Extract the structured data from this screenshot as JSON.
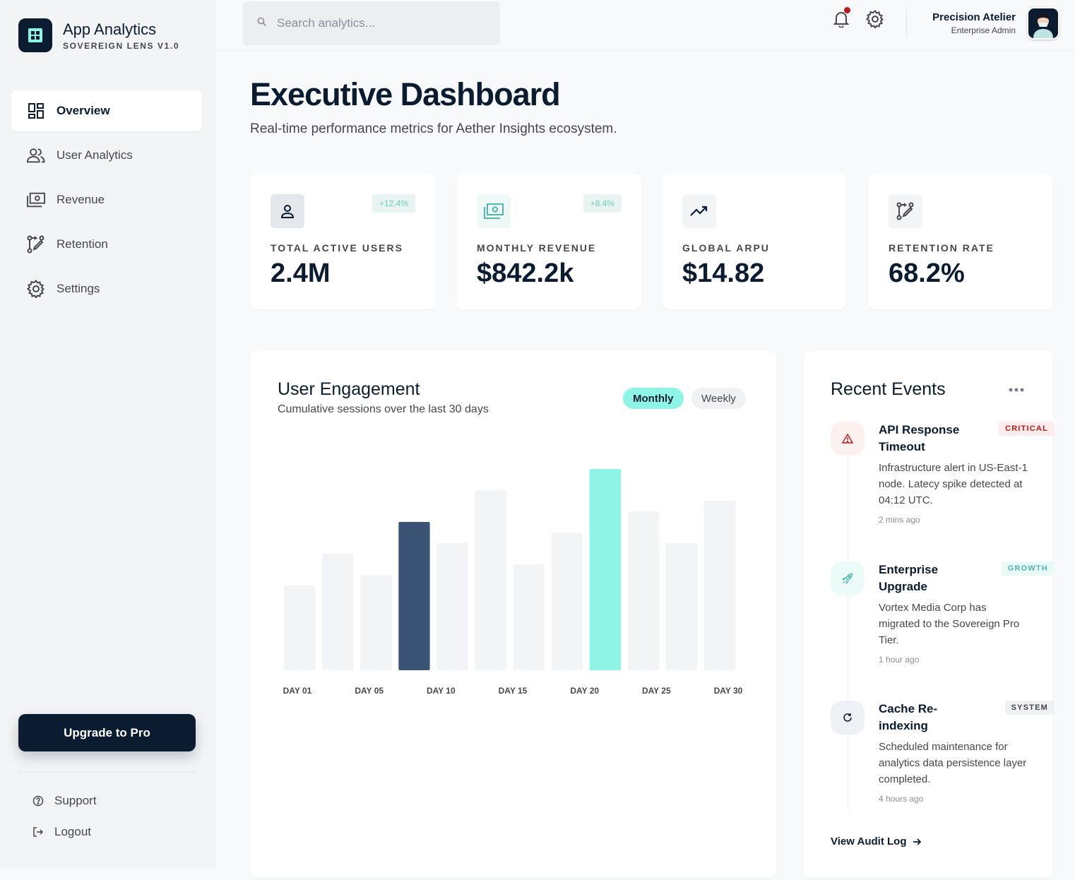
{
  "brand": {
    "title": "App Analytics",
    "subtitle": "SOVEREIGN LENS V1.0",
    "icon": "grid-logo-icon"
  },
  "sidebar": {
    "items": [
      {
        "label": "Overview",
        "icon": "dashboard-icon",
        "active": true
      },
      {
        "label": "User Analytics",
        "icon": "users-icon",
        "active": false
      },
      {
        "label": "Revenue",
        "icon": "money-icon",
        "active": false
      },
      {
        "label": "Retention",
        "icon": "route-icon",
        "active": false
      },
      {
        "label": "Settings",
        "icon": "gear-icon",
        "active": false
      }
    ],
    "upgrade_label": "Upgrade to Pro",
    "support_label": "Support",
    "logout_label": "Logout"
  },
  "header": {
    "search_placeholder": "Search analytics...",
    "user_name": "Precision Atelier",
    "user_role": "Enterprise Admin",
    "notification_dot_color": "#ba1a1a"
  },
  "page": {
    "title": "Executive Dashboard",
    "subtitle": "Real-time performance metrics for Aether Insights ecosystem."
  },
  "kpis": [
    {
      "label": "TOTAL ACTIVE USERS",
      "value": "2.4M",
      "badge": "+12.4%",
      "icon": "person-icon"
    },
    {
      "label": "MONTHLY REVENUE",
      "value": "$842.2k",
      "badge": "+8.4%",
      "icon": "money-icon"
    },
    {
      "label": "GLOBAL ARPU",
      "value": "$14.82",
      "badge": "",
      "icon": "trend-up-icon"
    },
    {
      "label": "RETENTION RATE",
      "value": "68.2%",
      "badge": "",
      "icon": "route-icon"
    }
  ],
  "engagement": {
    "title": "User Engagement",
    "subtitle": "Cumulative sessions over the last 30 days",
    "toggle_monthly": "Monthly",
    "toggle_weekly": "Weekly"
  },
  "chart_data": {
    "type": "bar",
    "tick_labels": [
      "DAY 01",
      "DAY 05",
      "DAY 10",
      "DAY 15",
      "DAY 20",
      "DAY 25",
      "DAY 30"
    ],
    "values": [
      40,
      55,
      45,
      70,
      60,
      85,
      50,
      65,
      95,
      75,
      60,
      80
    ],
    "highlight": {
      "3": "#3b5476",
      "8": "#8ef5e6"
    },
    "bar_color": "#f2f4f6",
    "ylim": [
      0,
      100
    ],
    "grid": false
  },
  "events": {
    "title": "Recent Events",
    "items": [
      {
        "title": "API Response Timeout",
        "tag": "CRITICAL",
        "description": "Infrastructure alert in US-East-1 node. Latecy spike detected at 04:12 UTC.",
        "time": "2 mins ago",
        "icon": "warning-icon"
      },
      {
        "title": "Enterprise Upgrade",
        "tag": "GROWTH",
        "description": "Vortex Media Corp has migrated to the Sovereign Pro Tier.",
        "time": "1 hour ago",
        "icon": "rocket-icon"
      },
      {
        "title": "Cache Re-indexing",
        "tag": "SYSTEM",
        "description": "Scheduled maintenance for analytics data persistence layer completed.",
        "time": "4 hours ago",
        "icon": "refresh-icon"
      }
    ],
    "audit_label": "View Audit Log"
  }
}
